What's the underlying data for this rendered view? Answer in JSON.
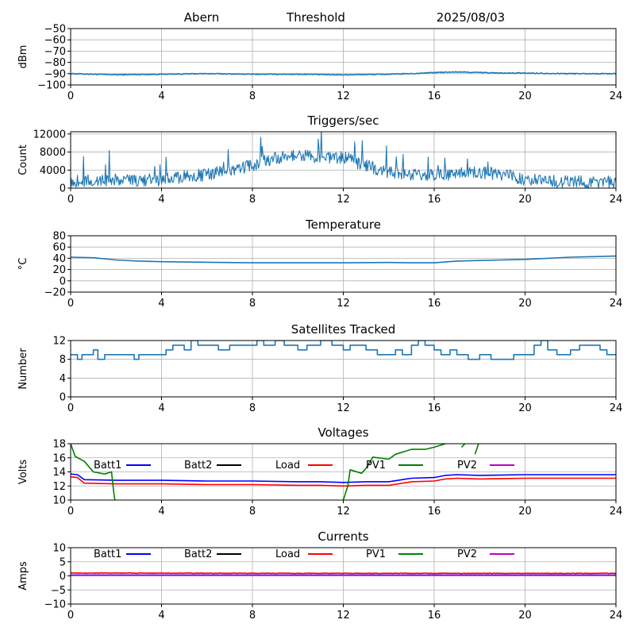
{
  "header": {
    "station": "Abern",
    "mode": "Threshold",
    "date": "2025/08/03"
  },
  "x_ticks": [
    "0",
    "4",
    "8",
    "12",
    "16",
    "20",
    "24"
  ],
  "colors": {
    "primary": "#1f77b4",
    "batt1": "#0000ff",
    "batt2": "#000000",
    "load": "#ff0000",
    "pv1": "#008000",
    "pv2": "#bf00bf",
    "grid": "#b0b0b0"
  },
  "legend_labels": [
    "Batt1",
    "Batt2",
    "Load",
    "PV1",
    "PV2"
  ],
  "chart_data": [
    {
      "type": "line",
      "title": "",
      "ylabel": "dBm",
      "xlim": [
        0,
        24
      ],
      "ylim": [
        -100,
        -50
      ],
      "yticks": [
        "−50",
        "−60",
        "−70",
        "−80",
        "−90",
        "−100"
      ],
      "yticks_values": [
        -50,
        -60,
        -70,
        -80,
        -90,
        -100
      ],
      "grid": true,
      "series": [
        {
          "color": "#1f77b4",
          "noise": 0.4,
          "points": [
            [
              0,
              -90
            ],
            [
              1,
              -90.5
            ],
            [
              2,
              -91
            ],
            [
              4,
              -90.5
            ],
            [
              6,
              -90
            ],
            [
              8,
              -90.5
            ],
            [
              10,
              -90.5
            ],
            [
              12,
              -91
            ],
            [
              14,
              -90.5
            ],
            [
              15,
              -90
            ],
            [
              16,
              -89
            ],
            [
              17,
              -88.5
            ],
            [
              18,
              -89
            ],
            [
              19,
              -89.5
            ],
            [
              20,
              -89.5
            ],
            [
              22,
              -90
            ],
            [
              24,
              -90
            ]
          ]
        }
      ]
    },
    {
      "type": "line",
      "title": "Triggers/sec",
      "ylabel": "Count",
      "xlim": [
        0,
        24
      ],
      "ylim": [
        0,
        12500
      ],
      "yticks": [
        "0",
        "4000",
        "8000",
        "12000"
      ],
      "yticks_values": [
        0,
        4000,
        8000,
        12000
      ],
      "grid": true,
      "series": [
        {
          "color": "#1f77b4",
          "noise": 1400,
          "spikes": true,
          "points": [
            [
              0,
              1500
            ],
            [
              2,
              1800
            ],
            [
              4,
              1800
            ],
            [
              5,
              2500
            ],
            [
              6,
              3000
            ],
            [
              7,
              4000
            ],
            [
              8,
              5000
            ],
            [
              9,
              6800
            ],
            [
              10,
              7200
            ],
            [
              11,
              7000
            ],
            [
              12,
              6800
            ],
            [
              13,
              5000
            ],
            [
              14,
              3500
            ],
            [
              15,
              3000
            ],
            [
              16,
              3000
            ],
            [
              17,
              3200
            ],
            [
              18,
              3500
            ],
            [
              19,
              3000
            ],
            [
              20,
              2000
            ],
            [
              21,
              1500
            ],
            [
              22,
              1400
            ],
            [
              24,
              1300
            ]
          ]
        }
      ]
    },
    {
      "type": "line",
      "title": "Temperature",
      "ylabel": "°C",
      "xlim": [
        0,
        24
      ],
      "ylim": [
        -20,
        80
      ],
      "yticks": [
        "80",
        "60",
        "40",
        "20",
        "0",
        "−20"
      ],
      "yticks_values": [
        80,
        60,
        40,
        20,
        0,
        -20
      ],
      "grid": true,
      "series": [
        {
          "color": "#1f77b4",
          "noise": 0,
          "points": [
            [
              0,
              42
            ],
            [
              1,
              41
            ],
            [
              2,
              37
            ],
            [
              3,
              35
            ],
            [
              4,
              34
            ],
            [
              6,
              33
            ],
            [
              8,
              32
            ],
            [
              10,
              32
            ],
            [
              12,
              32
            ],
            [
              14,
              32.5
            ],
            [
              15,
              32
            ],
            [
              16,
              32
            ],
            [
              17,
              35
            ],
            [
              18,
              36
            ],
            [
              19,
              37
            ],
            [
              20,
              38
            ],
            [
              21,
              40
            ],
            [
              22,
              42
            ],
            [
              23,
              43
            ],
            [
              24,
              44
            ]
          ]
        }
      ]
    },
    {
      "type": "line",
      "title": "Satellites Tracked",
      "ylabel": "Number",
      "xlim": [
        0,
        24
      ],
      "ylim": [
        0,
        12
      ],
      "yticks": [
        "0",
        "4",
        "8",
        "12"
      ],
      "yticks_values": [
        0,
        4,
        8,
        12
      ],
      "grid": true,
      "series": [
        {
          "color": "#1f77b4",
          "noise": 0,
          "step": true,
          "points": [
            [
              0,
              9
            ],
            [
              0.3,
              8
            ],
            [
              0.5,
              9
            ],
            [
              1,
              10
            ],
            [
              1.2,
              8
            ],
            [
              1.5,
              9
            ],
            [
              2,
              9
            ],
            [
              2.8,
              8
            ],
            [
              3,
              9
            ],
            [
              4,
              9
            ],
            [
              4.2,
              10
            ],
            [
              4.5,
              11
            ],
            [
              5,
              10
            ],
            [
              5.3,
              12
            ],
            [
              5.6,
              11
            ],
            [
              6,
              11
            ],
            [
              6.5,
              10
            ],
            [
              7,
              11
            ],
            [
              8,
              11
            ],
            [
              8.2,
              12
            ],
            [
              8.5,
              11
            ],
            [
              9,
              12
            ],
            [
              9.4,
              11
            ],
            [
              10,
              10
            ],
            [
              10.4,
              11
            ],
            [
              11,
              12
            ],
            [
              11.5,
              11
            ],
            [
              12,
              10
            ],
            [
              12.3,
              11
            ],
            [
              13,
              10
            ],
            [
              13.5,
              9
            ],
            [
              14,
              9
            ],
            [
              14.3,
              10
            ],
            [
              14.6,
              9
            ],
            [
              15,
              11
            ],
            [
              15.3,
              12
            ],
            [
              15.6,
              11
            ],
            [
              16,
              10
            ],
            [
              16.3,
              9
            ],
            [
              16.7,
              10
            ],
            [
              17,
              9
            ],
            [
              17.5,
              8
            ],
            [
              18,
              9
            ],
            [
              18.5,
              8
            ],
            [
              19,
              8
            ],
            [
              19.5,
              9
            ],
            [
              20,
              9
            ],
            [
              20.4,
              11
            ],
            [
              20.7,
              12
            ],
            [
              21,
              10
            ],
            [
              21.4,
              9
            ],
            [
              22,
              10
            ],
            [
              22.4,
              11
            ],
            [
              23,
              11
            ],
            [
              23.3,
              10
            ],
            [
              23.6,
              9
            ],
            [
              24,
              9
            ]
          ]
        }
      ]
    },
    {
      "type": "line",
      "title": "Voltages",
      "ylabel": "Volts",
      "xlim": [
        0,
        24
      ],
      "ylim": [
        10,
        18
      ],
      "yticks": [
        "10",
        "12",
        "14",
        "16",
        "18"
      ],
      "yticks_values": [
        10,
        12,
        14,
        16,
        18
      ],
      "grid": true,
      "legend": [
        "Batt1",
        "Batt2",
        "Load",
        "PV1",
        "PV2"
      ],
      "series": [
        {
          "name": "Batt1",
          "color": "#0000ff",
          "noise": 0,
          "points": [
            [
              0,
              13.7
            ],
            [
              0.3,
              13.6
            ],
            [
              0.6,
              12.9
            ],
            [
              2,
              12.8
            ],
            [
              4,
              12.8
            ],
            [
              6,
              12.7
            ],
            [
              8,
              12.7
            ],
            [
              10,
              12.6
            ],
            [
              11,
              12.6
            ],
            [
              12,
              12.5
            ],
            [
              13,
              12.6
            ],
            [
              14,
              12.6
            ],
            [
              15,
              13.1
            ],
            [
              16,
              13.2
            ],
            [
              16.5,
              13.5
            ],
            [
              17,
              13.6
            ],
            [
              18,
              13.5
            ],
            [
              20,
              13.6
            ],
            [
              22,
              13.6
            ],
            [
              24,
              13.6
            ]
          ]
        },
        {
          "name": "Load",
          "color": "#ff0000",
          "noise": 0,
          "points": [
            [
              0,
              13.3
            ],
            [
              0.3,
              13.2
            ],
            [
              0.6,
              12.4
            ],
            [
              2,
              12.3
            ],
            [
              4,
              12.3
            ],
            [
              6,
              12.2
            ],
            [
              8,
              12.2
            ],
            [
              10,
              12.1
            ],
            [
              11,
              12.1
            ],
            [
              12,
              12.0
            ],
            [
              13,
              12.1
            ],
            [
              14,
              12.1
            ],
            [
              15,
              12.6
            ],
            [
              16,
              12.7
            ],
            [
              16.5,
              13.0
            ],
            [
              17,
              13.1
            ],
            [
              18,
              13.0
            ],
            [
              20,
              13.1
            ],
            [
              22,
              13.1
            ],
            [
              24,
              13.1
            ]
          ]
        },
        {
          "name": "PV1",
          "color": "#008000",
          "noise": 0,
          "gaps": true,
          "points": [
            [
              0,
              18
            ],
            [
              0.2,
              16.2
            ],
            [
              0.6,
              15.5
            ],
            [
              1,
              14
            ],
            [
              1.5,
              13.7
            ],
            [
              1.8,
              14
            ],
            [
              1.9,
              11
            ],
            [
              1.95,
              10
            ],
            null,
            [
              12,
              10
            ],
            [
              12.2,
              12
            ],
            [
              12.3,
              14.3
            ],
            [
              12.8,
              13.8
            ],
            [
              13,
              14.5
            ],
            [
              13.3,
              16.1
            ],
            [
              14,
              15.8
            ],
            [
              14.3,
              16.5
            ],
            [
              15,
              17.2
            ],
            [
              15.6,
              17.2
            ],
            [
              16,
              17.5
            ],
            [
              16.5,
              18.0
            ],
            [
              16.8,
              18.5
            ],
            null,
            [
              17.2,
              17.5
            ],
            [
              17.5,
              18.5
            ],
            null,
            [
              17.8,
              16.5
            ],
            [
              18,
              18.5
            ]
          ]
        }
      ]
    },
    {
      "type": "line",
      "title": "Currents",
      "ylabel": "Amps",
      "xlim": [
        0,
        24
      ],
      "ylim": [
        -10,
        10
      ],
      "yticks": [
        "10",
        "5",
        "0",
        "−5",
        "−10"
      ],
      "yticks_values": [
        10,
        5,
        0,
        -5,
        -10
      ],
      "grid": true,
      "legend": [
        "Batt1",
        "Batt2",
        "Load",
        "PV1",
        "PV2"
      ],
      "series": [
        {
          "name": "Batt1",
          "color": "#0000ff",
          "noise": 0,
          "points": [
            [
              0,
              0.3
            ],
            [
              24,
              0.3
            ]
          ]
        },
        {
          "name": "Load",
          "color": "#ff0000",
          "noise": 0.1,
          "points": [
            [
              0,
              1.0
            ],
            [
              12,
              0.9
            ],
            [
              24,
              0.9
            ]
          ]
        },
        {
          "name": "PV2",
          "color": "#bf00bf",
          "noise": 0,
          "points": [
            [
              0,
              0.2
            ],
            [
              24,
              0.2
            ]
          ]
        }
      ]
    }
  ]
}
